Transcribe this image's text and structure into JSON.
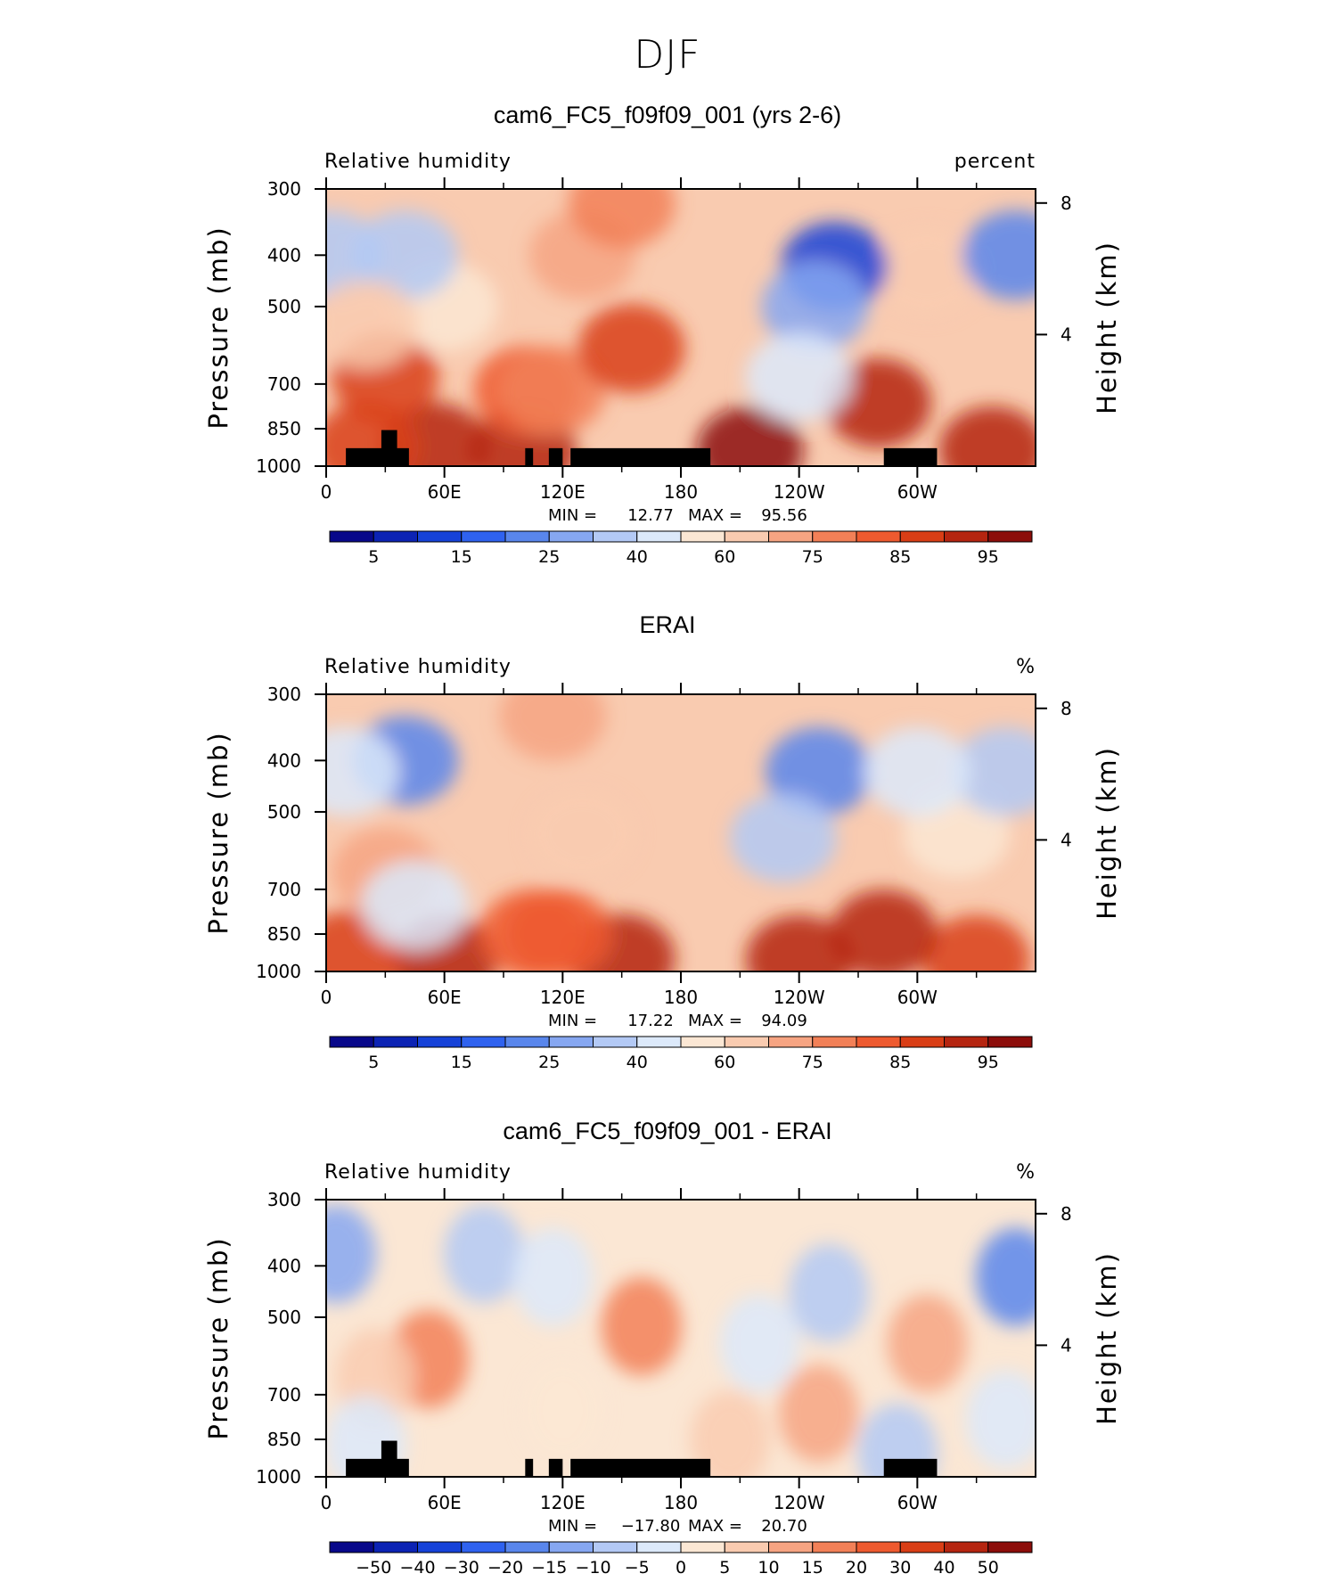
{
  "page_title": "DJF",
  "colorbars": {
    "absolute": {
      "labels": [
        "5",
        "15",
        "25",
        "40",
        "60",
        "75",
        "85",
        "95"
      ],
      "colors": [
        "#08088a",
        "#0c23b4",
        "#1642d8",
        "#2f62ef",
        "#5986ec",
        "#86a7f1",
        "#b3c9f5",
        "#dce9fa",
        "#fbe7d4",
        "#f9cbb0",
        "#f6a482",
        "#f28057",
        "#ee5a2f",
        "#d93e16",
        "#b52510",
        "#8c0d0a"
      ]
    },
    "difference": {
      "labels": [
        "−50",
        "−40",
        "−30",
        "−20",
        "−15",
        "−10",
        "−5",
        "0",
        "5",
        "10",
        "15",
        "20",
        "30",
        "40",
        "50"
      ],
      "colors": [
        "#08088a",
        "#0c23b4",
        "#1642d8",
        "#2f62ef",
        "#5986ec",
        "#86a7f1",
        "#b3c9f5",
        "#dce9fa",
        "#fbe7d4",
        "#f9cbb0",
        "#f6a482",
        "#f28057",
        "#ee5a2f",
        "#d93e16",
        "#b52510",
        "#8c0d0a"
      ]
    }
  },
  "chart_data": [
    {
      "type": "heatmap",
      "title": "cam6_FC5_f09f09_001 (yrs 2-6)",
      "variable": "Relative humidity",
      "units": "percent",
      "xlabel": "",
      "ylabel": "Pressure (mb)",
      "y2label": "Height (km)",
      "x_ticks": [
        "0",
        "60E",
        "120E",
        "180",
        "120W",
        "60W"
      ],
      "y_ticks": [
        "300",
        "400",
        "500",
        "700",
        "850",
        "1000"
      ],
      "y2_ticks": [
        "8",
        "4"
      ],
      "xlim": [
        0,
        360
      ],
      "ylim": [
        1000,
        300
      ],
      "y_scale": "log",
      "min_label": "MIN =",
      "min_value": "12.77",
      "max_label": "MAX =",
      "max_value": "95.56",
      "colorbar": "absolute",
      "levels": [
        5,
        10,
        15,
        20,
        25,
        30,
        40,
        50,
        60,
        65,
        70,
        75,
        80,
        85,
        90,
        95
      ],
      "features": [
        {
          "lon": 100,
          "p": 935,
          "value": 88
        },
        {
          "lon": 215,
          "p": 935,
          "value": 90
        },
        {
          "lon": 338,
          "p": 935,
          "value": 88
        },
        {
          "lon": 55,
          "p": 920,
          "value": 86
        },
        {
          "lon": 20,
          "p": 920,
          "value": 82
        },
        {
          "lon": 280,
          "p": 760,
          "value": 86
        },
        {
          "lon": 30,
          "p": 680,
          "value": 80
        },
        {
          "lon": 102,
          "p": 720,
          "value": 75
        },
        {
          "lon": 115,
          "p": 720,
          "value": 72
        },
        {
          "lon": 155,
          "p": 600,
          "value": 80
        },
        {
          "lon": 130,
          "p": 400,
          "value": 67
        },
        {
          "lon": 150,
          "p": 320,
          "value": 70
        },
        {
          "lon": 60,
          "p": 500,
          "value": 58
        },
        {
          "lon": 305,
          "p": 430,
          "value": 60
        },
        {
          "lon": 258,
          "p": 420,
          "value": 13
        },
        {
          "lon": 248,
          "p": 500,
          "value": 25
        },
        {
          "lon": 240,
          "p": 680,
          "value": 45
        },
        {
          "lon": 350,
          "p": 400,
          "value": 22
        },
        {
          "lon": 2,
          "p": 400,
          "value": 30
        },
        {
          "lon": 40,
          "p": 400,
          "value": 30
        },
        {
          "lon": 20,
          "p": 540,
          "value": 60
        }
      ],
      "topography": [
        {
          "lon": [
            10,
            42
          ],
          "p_top": 925
        },
        {
          "lon": [
            28,
            36
          ],
          "p_top": 855
        },
        {
          "lon": [
            101,
            105
          ],
          "p_top": 925
        },
        {
          "lon": [
            113,
            120
          ],
          "p_top": 925
        },
        {
          "lon": [
            124,
            195
          ],
          "p_top": 925
        },
        {
          "lon": [
            283,
            310
          ],
          "p_top": 925
        }
      ]
    },
    {
      "type": "heatmap",
      "title": "ERAI",
      "variable": "Relative humidity",
      "units": "%",
      "xlabel": "",
      "ylabel": "Pressure (mb)",
      "y2label": "Height (km)",
      "x_ticks": [
        "0",
        "60E",
        "120E",
        "180",
        "120W",
        "60W"
      ],
      "y_ticks": [
        "300",
        "400",
        "500",
        "700",
        "850",
        "1000"
      ],
      "y2_ticks": [
        "8",
        "4"
      ],
      "xlim": [
        0,
        360
      ],
      "ylim": [
        1000,
        300
      ],
      "y_scale": "log",
      "min_label": "MIN =",
      "min_value": "17.22",
      "max_label": "MAX =",
      "max_value": "94.09",
      "colorbar": "absolute",
      "levels": [
        5,
        10,
        15,
        20,
        25,
        30,
        40,
        50,
        60,
        65,
        70,
        75,
        80,
        85,
        90,
        95
      ],
      "features": [
        {
          "lon": 60,
          "p": 950,
          "value": 87
        },
        {
          "lon": 150,
          "p": 945,
          "value": 86
        },
        {
          "lon": 240,
          "p": 950,
          "value": 85
        },
        {
          "lon": 330,
          "p": 950,
          "value": 84
        },
        {
          "lon": 12,
          "p": 930,
          "value": 84
        },
        {
          "lon": 283,
          "p": 850,
          "value": 86
        },
        {
          "lon": 105,
          "p": 850,
          "value": 78
        },
        {
          "lon": 118,
          "p": 850,
          "value": 78
        },
        {
          "lon": 130,
          "p": 550,
          "value": 62
        },
        {
          "lon": 115,
          "p": 330,
          "value": 65
        },
        {
          "lon": 30,
          "p": 650,
          "value": 65
        },
        {
          "lon": 320,
          "p": 550,
          "value": 58
        },
        {
          "lon": 250,
          "p": 420,
          "value": 22
        },
        {
          "lon": 232,
          "p": 560,
          "value": 35
        },
        {
          "lon": 40,
          "p": 400,
          "value": 22
        },
        {
          "lon": 10,
          "p": 420,
          "value": 45
        },
        {
          "lon": 345,
          "p": 420,
          "value": 35
        },
        {
          "lon": 300,
          "p": 420,
          "value": 45
        },
        {
          "lon": 45,
          "p": 750,
          "value": 45
        }
      ],
      "topography": []
    },
    {
      "type": "heatmap",
      "title": "cam6_FC5_f09f09_001 - ERAI",
      "variable": "Relative humidity",
      "units": "%",
      "xlabel": "",
      "ylabel": "Pressure (mb)",
      "y2label": "Height (km)",
      "x_ticks": [
        "0",
        "60E",
        "120E",
        "180",
        "120W",
        "60W"
      ],
      "y_ticks": [
        "300",
        "400",
        "500",
        "700",
        "850",
        "1000"
      ],
      "y2_ticks": [
        "8",
        "4"
      ],
      "xlim": [
        0,
        360
      ],
      "ylim": [
        1000,
        300
      ],
      "y_scale": "log",
      "min_label": "MIN =",
      "min_value": "−17.80",
      "max_label": "MAX =",
      "max_value": "20.70",
      "colorbar": "difference",
      "levels": [
        -50,
        -40,
        -30,
        -20,
        -15,
        -10,
        -5,
        0,
        5,
        10,
        15,
        20,
        30,
        40,
        50
      ],
      "features": [
        {
          "lon": 52,
          "p": 600,
          "value": 16
        },
        {
          "lon": 25,
          "p": 650,
          "value": 9
        },
        {
          "lon": 160,
          "p": 520,
          "value": 16
        },
        {
          "lon": 305,
          "p": 560,
          "value": 14
        },
        {
          "lon": 250,
          "p": 760,
          "value": 12
        },
        {
          "lon": 205,
          "p": 850,
          "value": 9
        },
        {
          "lon": 120,
          "p": 750,
          "value": 4
        },
        {
          "lon": 350,
          "p": 420,
          "value": -17
        },
        {
          "lon": 5,
          "p": 380,
          "value": -12
        },
        {
          "lon": 80,
          "p": 380,
          "value": -10
        },
        {
          "lon": 220,
          "p": 560,
          "value": -3
        },
        {
          "lon": 255,
          "p": 450,
          "value": -8
        },
        {
          "lon": 115,
          "p": 420,
          "value": -3
        },
        {
          "lon": 345,
          "p": 780,
          "value": -3
        },
        {
          "lon": 20,
          "p": 870,
          "value": -5
        },
        {
          "lon": 290,
          "p": 900,
          "value": -6
        }
      ],
      "topography": [
        {
          "lon": [
            10,
            42
          ],
          "p_top": 925
        },
        {
          "lon": [
            28,
            36
          ],
          "p_top": 855
        },
        {
          "lon": [
            101,
            105
          ],
          "p_top": 925
        },
        {
          "lon": [
            113,
            120
          ],
          "p_top": 925
        },
        {
          "lon": [
            124,
            195
          ],
          "p_top": 925
        },
        {
          "lon": [
            283,
            310
          ],
          "p_top": 925
        }
      ]
    }
  ]
}
